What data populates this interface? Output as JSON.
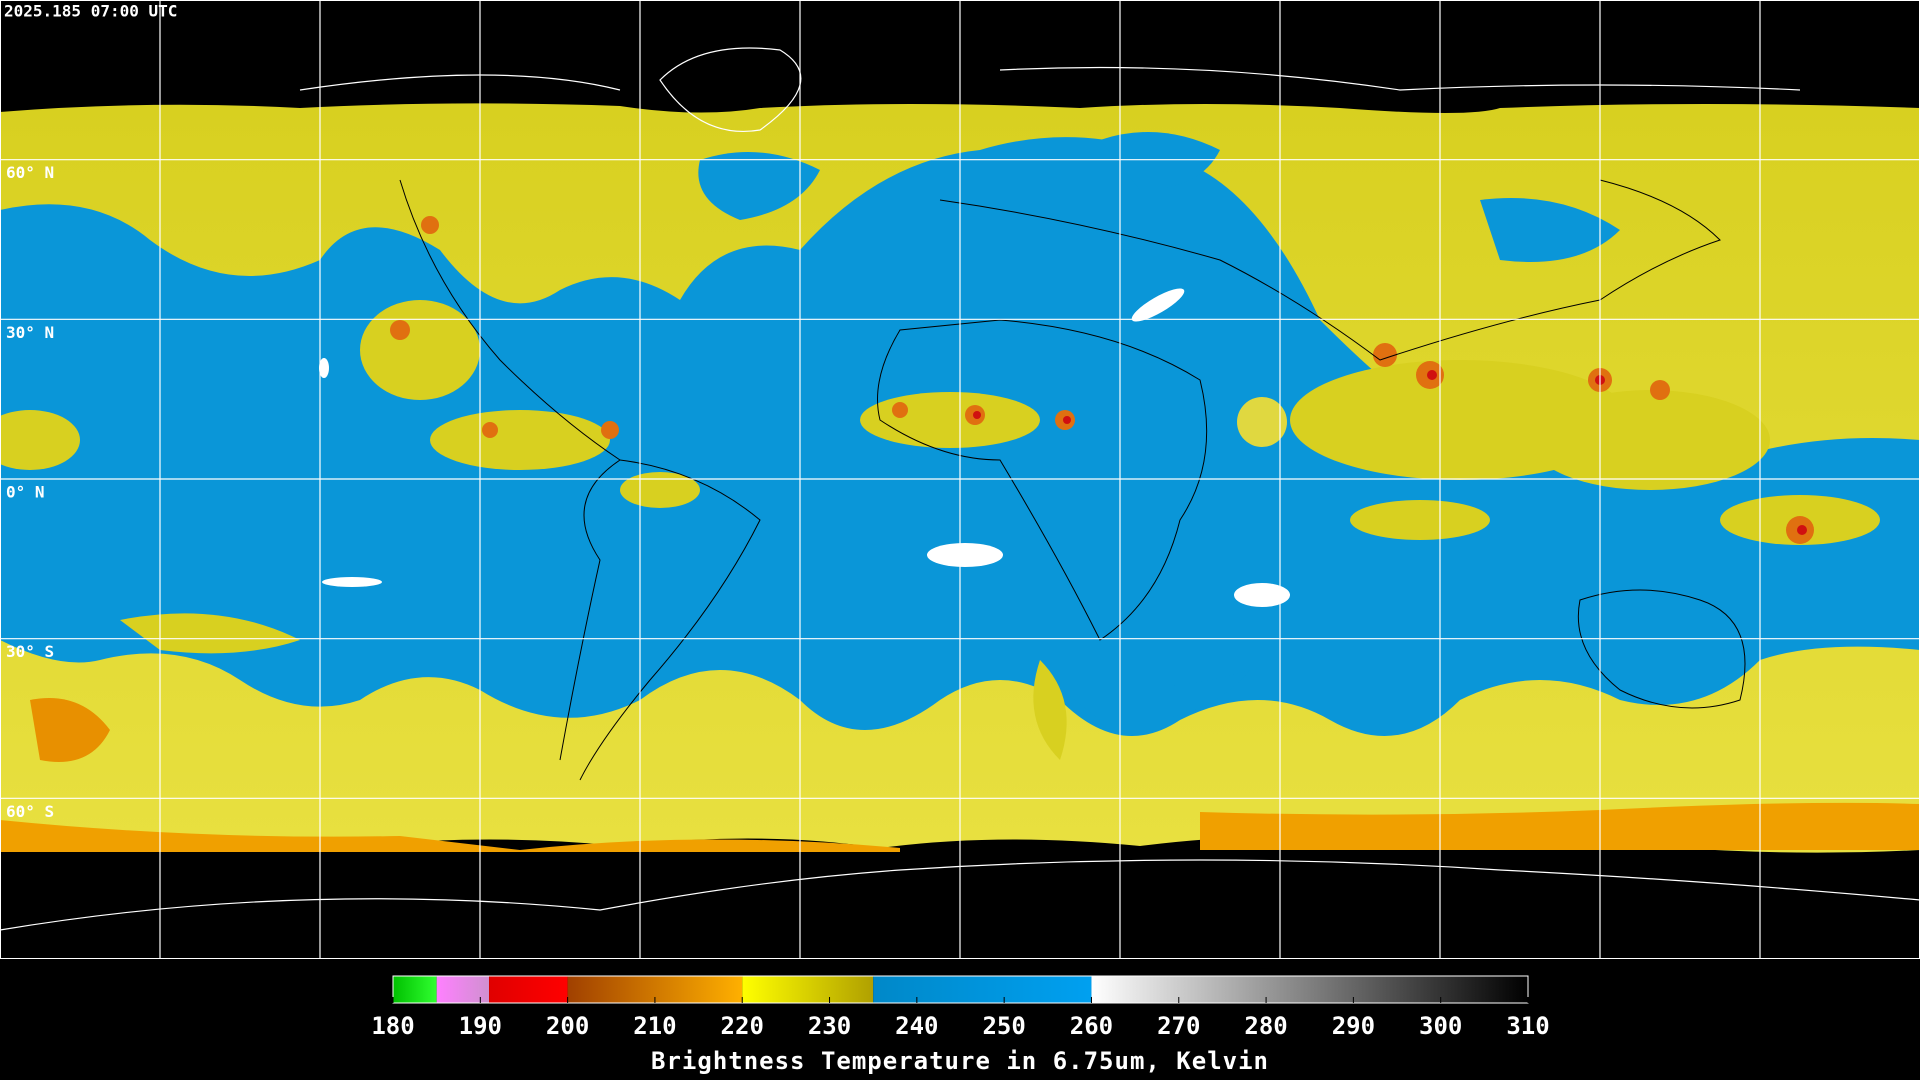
{
  "timestamp": "2025.185 07:00 UTC",
  "map": {
    "lat_gridlines": [
      {
        "value": 60,
        "label": "60° N"
      },
      {
        "value": 30,
        "label": "30° N"
      },
      {
        "value": 0,
        "label": "0° N"
      },
      {
        "value": -30,
        "label": "30° S"
      },
      {
        "value": -60,
        "label": "60° S"
      }
    ],
    "lon_gridlines": [
      -150,
      -120,
      -90,
      -60,
      -30,
      0,
      30,
      60,
      90,
      120,
      150
    ]
  },
  "colorbar": {
    "title": "Brightness Temperature in 6.75um, Kelvin",
    "range": [
      180,
      310
    ],
    "ticks": [
      180,
      190,
      200,
      210,
      220,
      230,
      240,
      250,
      260,
      270,
      280,
      290,
      300,
      310
    ],
    "segments": [
      {
        "from": 180,
        "to": 185,
        "colors": [
          "#00c000",
          "#30ff30"
        ]
      },
      {
        "from": 185,
        "to": 191,
        "colors": [
          "#ff80ff",
          "#d090d0"
        ]
      },
      {
        "from": 191,
        "to": 200,
        "colors": [
          "#e00000",
          "#ff0000"
        ]
      },
      {
        "from": 200,
        "to": 220,
        "colors": [
          "#a04000",
          "#ffb000"
        ]
      },
      {
        "from": 220,
        "to": 235,
        "colors": [
          "#ffff00",
          "#b0a000"
        ]
      },
      {
        "from": 235,
        "to": 260,
        "colors": [
          "#0088c8",
          "#00a0f0"
        ]
      },
      {
        "from": 260,
        "to": 310,
        "colors": [
          "#ffffff",
          "#000000"
        ]
      }
    ]
  }
}
